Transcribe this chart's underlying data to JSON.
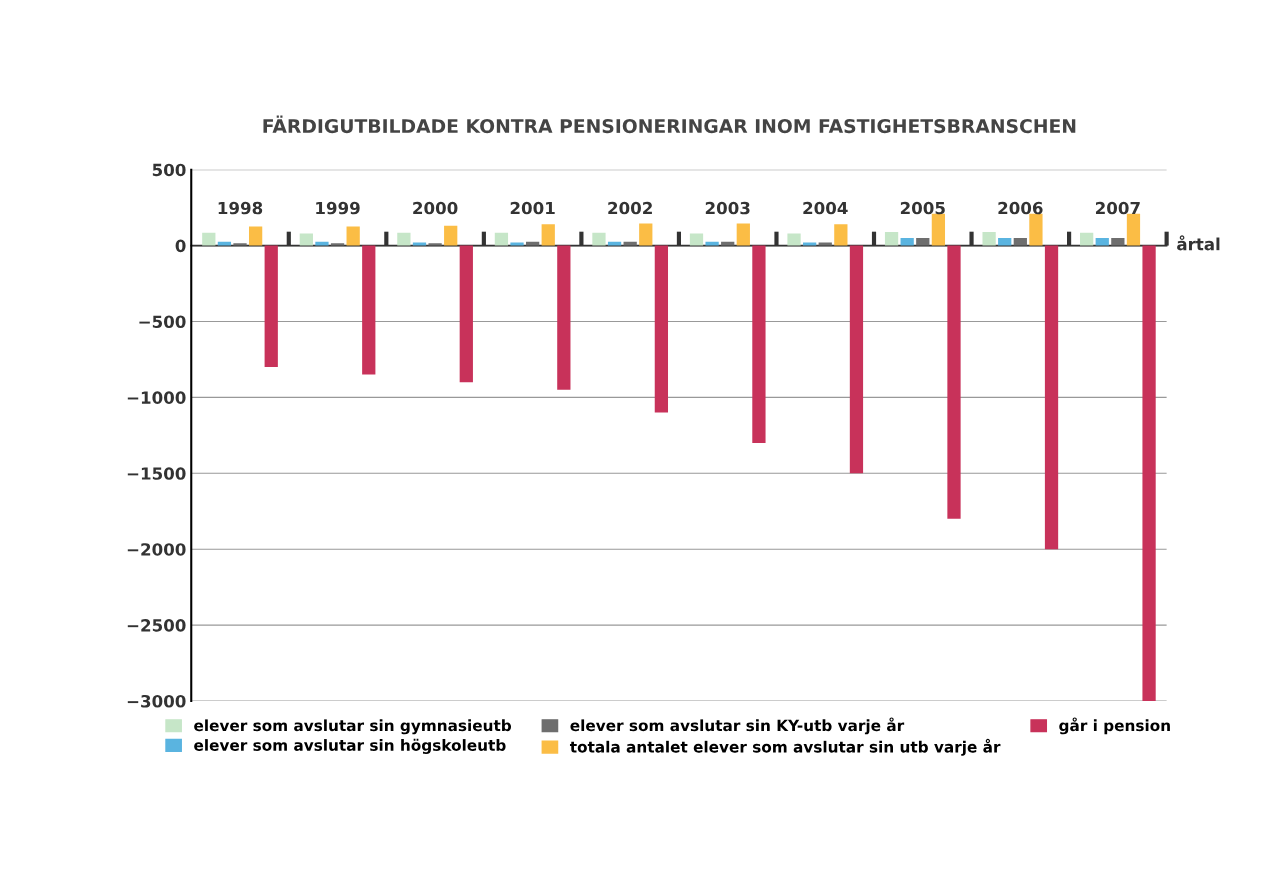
{
  "chart_data": {
    "type": "bar",
    "title": "FÄRDIGUTBILDADE KONTRA PENSIONERINGAR INOM FASTIGHETSBRANSCHEN",
    "xlabel": "årtal",
    "categories": [
      "1998",
      "1999",
      "2000",
      "2001",
      "2002",
      "2003",
      "2004",
      "2005",
      "2006",
      "2007"
    ],
    "series": [
      {
        "name": "elever som avslutar sin gymnasieutb",
        "color": "#c6e6c8",
        "values": [
          85,
          80,
          85,
          85,
          85,
          80,
          80,
          90,
          90,
          85
        ]
      },
      {
        "name": "elever som avslutar sin högskoleutb",
        "color": "#5ab4e0",
        "values": [
          25,
          25,
          20,
          20,
          25,
          25,
          20,
          50,
          50,
          50
        ]
      },
      {
        "name": "elever som avslutar sin KY-utb varje år",
        "color": "#6e6e6e",
        "values": [
          15,
          15,
          15,
          25,
          25,
          25,
          20,
          50,
          50,
          50
        ]
      },
      {
        "name": "totala antalet elever som avslutar sin utb varje år",
        "color": "#fbbd45",
        "values": [
          125,
          125,
          130,
          140,
          145,
          145,
          140,
          210,
          210,
          210
        ]
      },
      {
        "name": "går i pension",
        "color": "#c8325a",
        "values": [
          -800,
          -850,
          -900,
          -950,
          -1100,
          -1300,
          -1500,
          -1800,
          -2000,
          -3000
        ]
      }
    ],
    "ylim": [
      -3000,
      500
    ],
    "yticks": [
      500,
      0,
      {
        "value": -500,
        "label": "−500"
      },
      {
        "value": -1000,
        "label": "−1000"
      },
      {
        "value": -1500,
        "label": "−1500"
      },
      {
        "value": -2000,
        "label": "−2000"
      },
      {
        "value": -2500,
        "label": "−2500"
      },
      {
        "value": -3000,
        "label": "−3000"
      }
    ],
    "grid": "y",
    "legend": "bottom"
  }
}
